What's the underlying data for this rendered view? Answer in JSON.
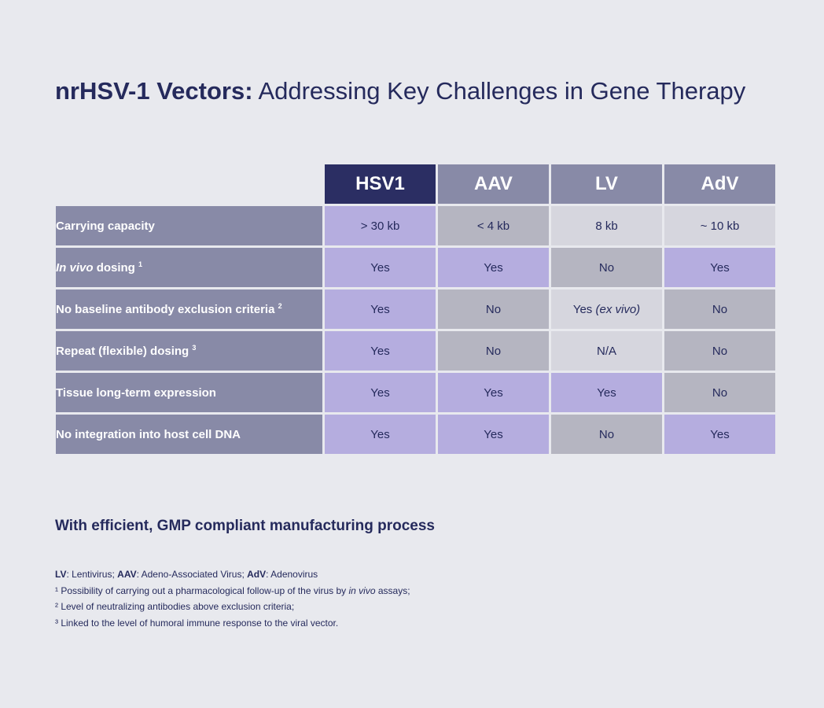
{
  "title": {
    "bold": "nrHSV-1 Vectors:",
    "light": "Addressing Key Challenges in Gene Therapy"
  },
  "table": {
    "columns": [
      "HSV1",
      "AAV",
      "LV",
      "AdV"
    ],
    "rows": [
      {
        "label": "Carrying capacity",
        "label_italic": "",
        "sup": "",
        "cells": [
          {
            "text": "> 30 kb",
            "italic": "",
            "tone": "purple"
          },
          {
            "text": "< 4 kb",
            "italic": "",
            "tone": "mid"
          },
          {
            "text": "8 kb",
            "italic": "",
            "tone": "light"
          },
          {
            "text": "~ 10 kb",
            "italic": "",
            "tone": "light"
          }
        ]
      },
      {
        "label": "dosing",
        "label_italic": "In vivo",
        "sup": "1",
        "cells": [
          {
            "text": "Yes",
            "italic": "",
            "tone": "purple"
          },
          {
            "text": "Yes",
            "italic": "",
            "tone": "purple"
          },
          {
            "text": "No",
            "italic": "",
            "tone": "mid"
          },
          {
            "text": "Yes",
            "italic": "",
            "tone": "purple"
          }
        ]
      },
      {
        "label": "No baseline antibody exclusion criteria",
        "label_italic": "",
        "sup": "2",
        "cells": [
          {
            "text": "Yes",
            "italic": "",
            "tone": "purple"
          },
          {
            "text": "No",
            "italic": "",
            "tone": "mid"
          },
          {
            "text": "Yes",
            "italic": "(ex vivo)",
            "tone": "light"
          },
          {
            "text": "No",
            "italic": "",
            "tone": "mid"
          }
        ]
      },
      {
        "label": "Repeat (flexible) dosing",
        "label_italic": "",
        "sup": "3",
        "cells": [
          {
            "text": "Yes",
            "italic": "",
            "tone": "purple"
          },
          {
            "text": "No",
            "italic": "",
            "tone": "mid"
          },
          {
            "text": "N/A",
            "italic": "",
            "tone": "light"
          },
          {
            "text": "No",
            "italic": "",
            "tone": "mid"
          }
        ]
      },
      {
        "label": "Tissue long-term expression",
        "label_italic": "",
        "sup": "",
        "cells": [
          {
            "text": "Yes",
            "italic": "",
            "tone": "purple"
          },
          {
            "text": "Yes",
            "italic": "",
            "tone": "purple"
          },
          {
            "text": "Yes",
            "italic": "",
            "tone": "purple"
          },
          {
            "text": "No",
            "italic": "",
            "tone": "mid"
          }
        ]
      },
      {
        "label": "No integration into host cell DNA",
        "label_italic": "",
        "sup": "",
        "cells": [
          {
            "text": "Yes",
            "italic": "",
            "tone": "purple"
          },
          {
            "text": "Yes",
            "italic": "",
            "tone": "purple"
          },
          {
            "text": "No",
            "italic": "",
            "tone": "mid"
          },
          {
            "text": "Yes",
            "italic": "",
            "tone": "purple"
          }
        ]
      }
    ]
  },
  "tagline": "With efficient, GMP compliant manufacturing process",
  "notes": {
    "abbrev": [
      {
        "bold": "LV",
        "text": ": Lentivirus; "
      },
      {
        "bold": "AAV",
        "text": ": Adeno-Associated Virus; "
      },
      {
        "bold": "AdV",
        "text": ": Adenovirus"
      }
    ],
    "footnote1": {
      "pre": "¹ Possibility of carrying out a pharmacological follow-up of the virus by ",
      "italic": "in vivo",
      "post": " assays;"
    },
    "footnote2": "² Level of neutralizing antibodies above exclusion criteria;",
    "footnote3": "³ Linked to the level of humoral immune response to the viral vector."
  },
  "colors": {
    "background": "#e8e9ee",
    "navy": "#2b2e63",
    "header_grey": "#888aa7",
    "purple": "#b5addf",
    "mid_grey": "#b5b5c1",
    "light_grey": "#d6d6de"
  }
}
